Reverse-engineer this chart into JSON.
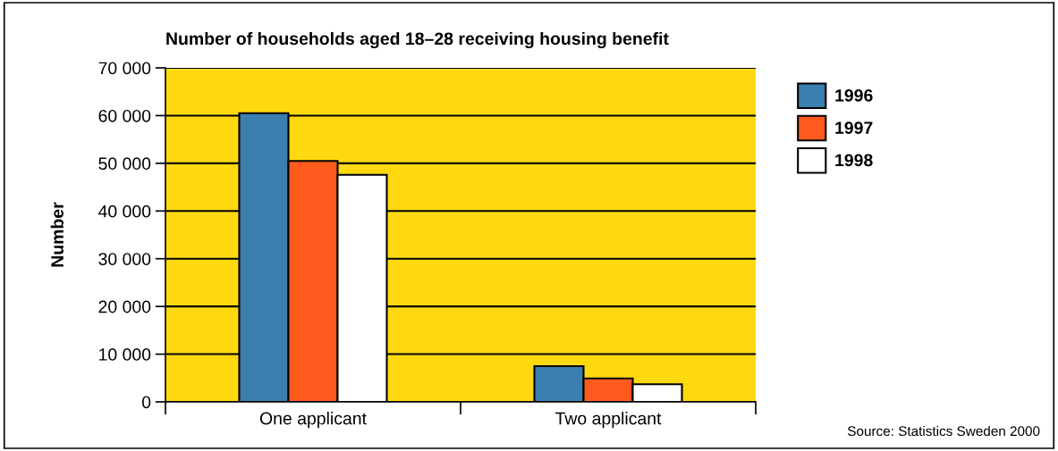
{
  "chart_data": {
    "type": "bar",
    "title": "Number of households aged 18–28 receiving housing benefit",
    "ylabel": "Number",
    "categories": [
      "One applicant",
      "Two applicant"
    ],
    "series": [
      {
        "name": "1996",
        "color": "#3a7fae",
        "values": [
          60500,
          7500
        ]
      },
      {
        "name": "1997",
        "color": "#ff5a1e",
        "values": [
          50500,
          4900
        ]
      },
      {
        "name": "1998",
        "color": "#ffffff",
        "values": [
          47600,
          3700
        ]
      }
    ],
    "ylim": [
      0,
      70000
    ],
    "yticks": [
      {
        "value": 0,
        "label": "0"
      },
      {
        "value": 10000,
        "label": "10 000"
      },
      {
        "value": 20000,
        "label": "20 000"
      },
      {
        "value": 30000,
        "label": "30 000"
      },
      {
        "value": 40000,
        "label": "40 000"
      },
      {
        "value": 50000,
        "label": "50 000"
      },
      {
        "value": 60000,
        "label": "60 000"
      },
      {
        "value": 70000,
        "label": "70 000"
      }
    ],
    "grid": "y",
    "legend": "top right",
    "annotations": [
      "Source: Statistics Sweden 2000"
    ]
  }
}
